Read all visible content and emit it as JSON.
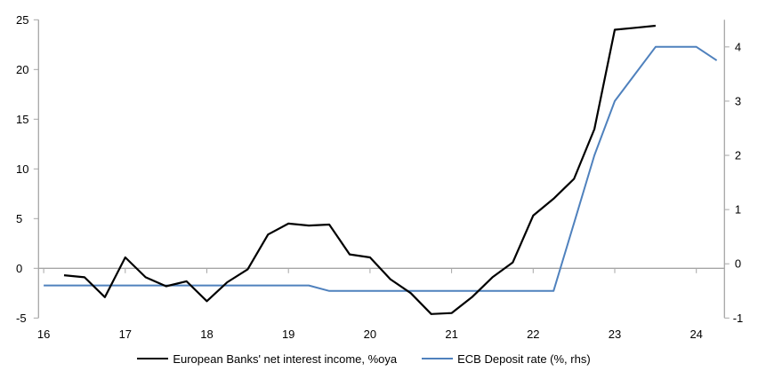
{
  "chart_data": {
    "type": "line",
    "title": "",
    "legend_position": "bottom",
    "grid": "zero-line-only",
    "axis_color": "#a6a6a6",
    "x_axis": {
      "min": 16,
      "max": 24.345,
      "ticks": [
        16,
        17,
        18,
        19,
        20,
        21,
        22,
        23,
        24
      ],
      "tick_labels": [
        "16",
        "17",
        "18",
        "19",
        "20",
        "21",
        "22",
        "23",
        "24"
      ]
    },
    "y_axis_left": {
      "min": -5,
      "max": 25,
      "ticks": [
        -5,
        0,
        5,
        10,
        15,
        20,
        25
      ],
      "tick_labels": [
        "-5",
        "0",
        "5",
        "10",
        "15",
        "20",
        "25"
      ]
    },
    "y_axis_right": {
      "min": -1,
      "max": 4.5,
      "ticks": [
        -1,
        0,
        1,
        2,
        3,
        4
      ],
      "tick_labels": [
        "-1",
        "0",
        "1",
        "2",
        "3",
        "4"
      ]
    },
    "series": [
      {
        "name": "European Banks' net interest income, %oya",
        "axis": "left",
        "color": "#000000",
        "points": [
          [
            16.25,
            -0.7
          ],
          [
            16.5,
            -0.9
          ],
          [
            16.75,
            -2.9
          ],
          [
            17.0,
            1.1
          ],
          [
            17.25,
            -0.9
          ],
          [
            17.5,
            -1.8
          ],
          [
            17.75,
            -1.3
          ],
          [
            18.0,
            -3.3
          ],
          [
            18.25,
            -1.4
          ],
          [
            18.5,
            -0.1
          ],
          [
            18.75,
            3.4
          ],
          [
            19.0,
            4.5
          ],
          [
            19.25,
            4.3
          ],
          [
            19.5,
            4.4
          ],
          [
            19.75,
            1.4
          ],
          [
            20.0,
            1.1
          ],
          [
            20.25,
            -1.1
          ],
          [
            20.5,
            -2.5
          ],
          [
            20.75,
            -4.6
          ],
          [
            21.0,
            -4.5
          ],
          [
            21.25,
            -2.9
          ],
          [
            21.5,
            -0.9
          ],
          [
            21.75,
            0.6
          ],
          [
            22.0,
            5.3
          ],
          [
            22.25,
            7.0
          ],
          [
            22.5,
            9.0
          ],
          [
            22.75,
            14.0
          ],
          [
            23.0,
            24.0
          ],
          [
            23.25,
            24.2
          ],
          [
            23.5,
            24.4
          ]
        ]
      },
      {
        "name": "ECB Deposit rate (%, rhs)",
        "axis": "right",
        "color": "#4f81bd",
        "points": [
          [
            16.0,
            -0.4
          ],
          [
            16.25,
            -0.4
          ],
          [
            16.5,
            -0.4
          ],
          [
            16.75,
            -0.4
          ],
          [
            17.0,
            -0.4
          ],
          [
            17.25,
            -0.4
          ],
          [
            17.5,
            -0.4
          ],
          [
            17.75,
            -0.4
          ],
          [
            18.0,
            -0.4
          ],
          [
            18.25,
            -0.4
          ],
          [
            18.5,
            -0.4
          ],
          [
            18.75,
            -0.4
          ],
          [
            19.0,
            -0.4
          ],
          [
            19.25,
            -0.4
          ],
          [
            19.5,
            -0.5
          ],
          [
            19.75,
            -0.5
          ],
          [
            20.0,
            -0.5
          ],
          [
            20.25,
            -0.5
          ],
          [
            20.5,
            -0.5
          ],
          [
            20.75,
            -0.5
          ],
          [
            21.0,
            -0.5
          ],
          [
            21.25,
            -0.5
          ],
          [
            21.5,
            -0.5
          ],
          [
            21.75,
            -0.5
          ],
          [
            22.0,
            -0.5
          ],
          [
            22.25,
            -0.5
          ],
          [
            22.5,
            0.75
          ],
          [
            22.75,
            2.0
          ],
          [
            23.0,
            3.0
          ],
          [
            23.25,
            3.5
          ],
          [
            23.5,
            4.0
          ],
          [
            23.75,
            4.0
          ],
          [
            24.0,
            4.0
          ],
          [
            24.25,
            3.75
          ]
        ]
      }
    ]
  }
}
